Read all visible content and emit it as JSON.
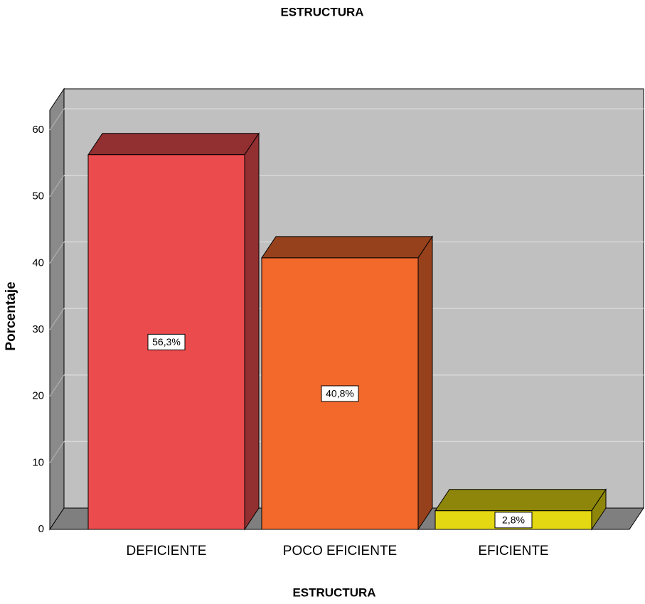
{
  "chart_data": {
    "type": "bar3d",
    "title": "ESTRUCTURA",
    "x_label": "ESTRUCTURA",
    "y_label": "Porcentaje",
    "categories": [
      "DEFICIENTE",
      "POCO EFICIENTE",
      "EFICIENTE"
    ],
    "values": [
      56.3,
      40.8,
      2.8
    ],
    "value_labels": [
      "56,3%",
      "40,8%",
      "2,8%"
    ],
    "colors": [
      "#ec4b4d",
      "#f2692b",
      "#e3d812"
    ],
    "ylim": [
      0,
      63
    ],
    "yticks": [
      0,
      10,
      20,
      30,
      40,
      50,
      60
    ],
    "grid": true
  }
}
